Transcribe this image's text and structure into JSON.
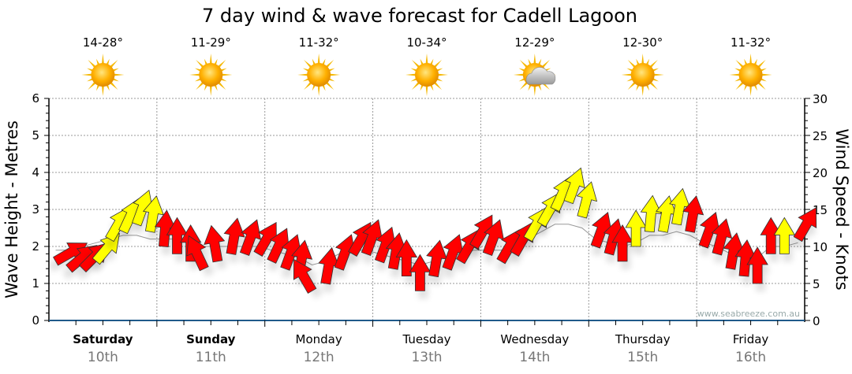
{
  "chart_data": {
    "type": "scatter",
    "title": "7 day wind & wave forecast for Cadell Lagoon",
    "ylabel_left": "Wave Height - Metres",
    "ylabel_right": "Wind Speed - Knots",
    "ylim_left": [
      0,
      6
    ],
    "ylim_right": [
      0,
      30
    ],
    "yticks_left": [
      "0",
      "1",
      "2",
      "3",
      "4",
      "5",
      "6"
    ],
    "yticks_right": [
      "0",
      "5",
      "10",
      "15",
      "20",
      "25",
      "30"
    ],
    "grid": true,
    "watermark": "www.seabreeze.com.au",
    "days": [
      {
        "day": "Saturday",
        "date": "10th",
        "temp": "14-28°",
        "icon": "sunny-icon",
        "bold": true
      },
      {
        "day": "Sunday",
        "date": "11th",
        "temp": "11-29°",
        "icon": "sunny-icon",
        "bold": true
      },
      {
        "day": "Monday",
        "date": "12th",
        "temp": "11-32°",
        "icon": "sunny-icon",
        "bold": false
      },
      {
        "day": "Tuesday",
        "date": "13th",
        "temp": "10-34°",
        "icon": "sunny-icon",
        "bold": false
      },
      {
        "day": "Wednesday",
        "date": "14th",
        "temp": "12-29°",
        "icon": "partly-cloudy-icon",
        "bold": false
      },
      {
        "day": "Thursday",
        "date": "15th",
        "temp": "12-30°",
        "icon": "sunny-icon",
        "bold": false
      },
      {
        "day": "Friday",
        "date": "16th",
        "temp": "11-32°",
        "icon": "sunny-icon",
        "bold": false
      }
    ],
    "wind_series": {
      "name": "Wind Speed (knots)",
      "interval_hours": 3,
      "speed": [
        8,
        7,
        7,
        8,
        11,
        12,
        13,
        12,
        10,
        9,
        8,
        7,
        8,
        9,
        9,
        9,
        8,
        7,
        6,
        4,
        5,
        7,
        9,
        9,
        8,
        7,
        6,
        4,
        6,
        7,
        8,
        10,
        9,
        8,
        9,
        11,
        13,
        15,
        16,
        14,
        10,
        9,
        8,
        10,
        12,
        12,
        13,
        12,
        10,
        9,
        7,
        6,
        5,
        9,
        9,
        11
      ],
      "direction_deg": [
        60,
        50,
        45,
        40,
        30,
        25,
        20,
        10,
        5,
        0,
        0,
        -25,
        -10,
        10,
        20,
        30,
        25,
        20,
        10,
        -30,
        10,
        20,
        30,
        20,
        20,
        10,
        0,
        0,
        10,
        20,
        30,
        30,
        20,
        30,
        30,
        30,
        30,
        25,
        20,
        15,
        20,
        15,
        0,
        0,
        5,
        10,
        10,
        10,
        20,
        15,
        10,
        5,
        0,
        0,
        0,
        30
      ],
      "color_class": [
        "r",
        "r",
        "r",
        "y",
        "y",
        "y",
        "y",
        "y",
        "r",
        "r",
        "r",
        "r",
        "r",
        "r",
        "r",
        "r",
        "r",
        "r",
        "r",
        "r",
        "r",
        "r",
        "r",
        "r",
        "r",
        "r",
        "r",
        "r",
        "r",
        "r",
        "r",
        "r",
        "r",
        "r",
        "r",
        "y",
        "y",
        "y",
        "y",
        "y",
        "r",
        "r",
        "r",
        "y",
        "y",
        "y",
        "y",
        "r",
        "r",
        "r",
        "r",
        "r",
        "r",
        "r",
        "y",
        "r"
      ]
    },
    "wave_series": {
      "name": "Wave Height (m)",
      "values": [
        1.9,
        1.9,
        2.0,
        2.1,
        2.2,
        2.3,
        2.3,
        2.2,
        2.2,
        2.2,
        2.1,
        2.0,
        2.0,
        2.0,
        2.0,
        2.0,
        1.9,
        1.8,
        1.7,
        1.5,
        1.6,
        1.8,
        1.9,
        1.9,
        1.8,
        1.7,
        1.6,
        1.5,
        1.6,
        1.7,
        1.8,
        1.9,
        1.9,
        1.9,
        2.0,
        2.2,
        2.4,
        2.6,
        2.6,
        2.5,
        2.2,
        2.1,
        2.0,
        2.1,
        2.3,
        2.3,
        2.4,
        2.3,
        2.1,
        2.0,
        1.8,
        1.7,
        1.7,
        2.0,
        2.0,
        2.1
      ]
    },
    "colors": {
      "strong": "#ff0000",
      "moderate": "#ffff00",
      "axis": "#1f5a8a"
    }
  }
}
